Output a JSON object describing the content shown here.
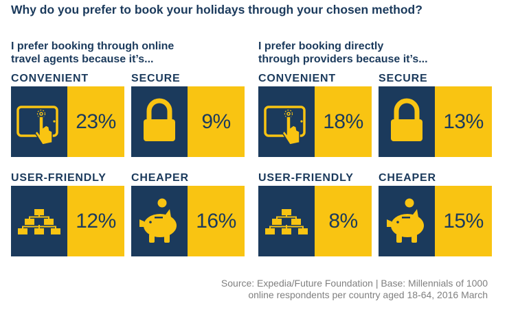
{
  "title": "Why do you prefer to book your holidays through your chosen method?",
  "groups": [
    {
      "line1": "I prefer booking through online",
      "line2": "travel agents because it’s..."
    },
    {
      "line1": "I prefer booking directly",
      "line2": "through providers because it’s..."
    }
  ],
  "source": {
    "line1": "Source: Expedia/Future Foundation | Base: Millennials of 1000",
    "line2": "online respondents per country aged 18-64, 2016 March"
  },
  "colors": {
    "navy": "#1b3a5c",
    "yellow": "#f9c412"
  },
  "chart_data": {
    "type": "table",
    "categories": [
      "CONVENIENT",
      "SECURE",
      "USER-FRIENDLY",
      "CHEAPER"
    ],
    "icons": [
      "tablet-touch-icon",
      "padlock-icon",
      "sitemap-icon",
      "piggy-bank-icon"
    ],
    "series": [
      {
        "values": [
          23,
          9,
          12,
          16
        ],
        "labels": [
          "23%",
          "9%",
          "12%",
          "16%"
        ]
      },
      {
        "values": [
          18,
          13,
          8,
          15
        ],
        "labels": [
          "18%",
          "13%",
          "8%",
          "15%"
        ]
      }
    ]
  }
}
